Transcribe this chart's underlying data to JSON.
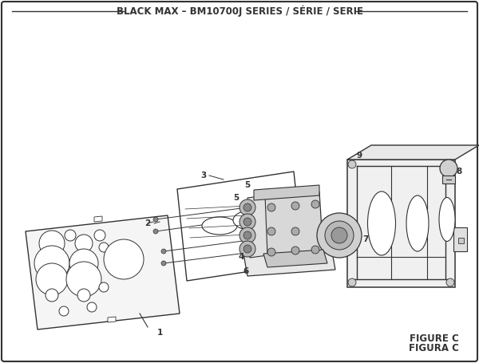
{
  "title": "BLACK MAX – BM10700J SERIES / SÉRIE / SERIE",
  "title_fontsize": 8.5,
  "figure_c_text": "FIGURE C",
  "figura_c_text": "FIGURA C",
  "bg_color": "#ffffff",
  "line_color": "#333333",
  "label_fontsize": 7.5,
  "figsize": [
    6.0,
    4.55
  ],
  "dpi": 100
}
